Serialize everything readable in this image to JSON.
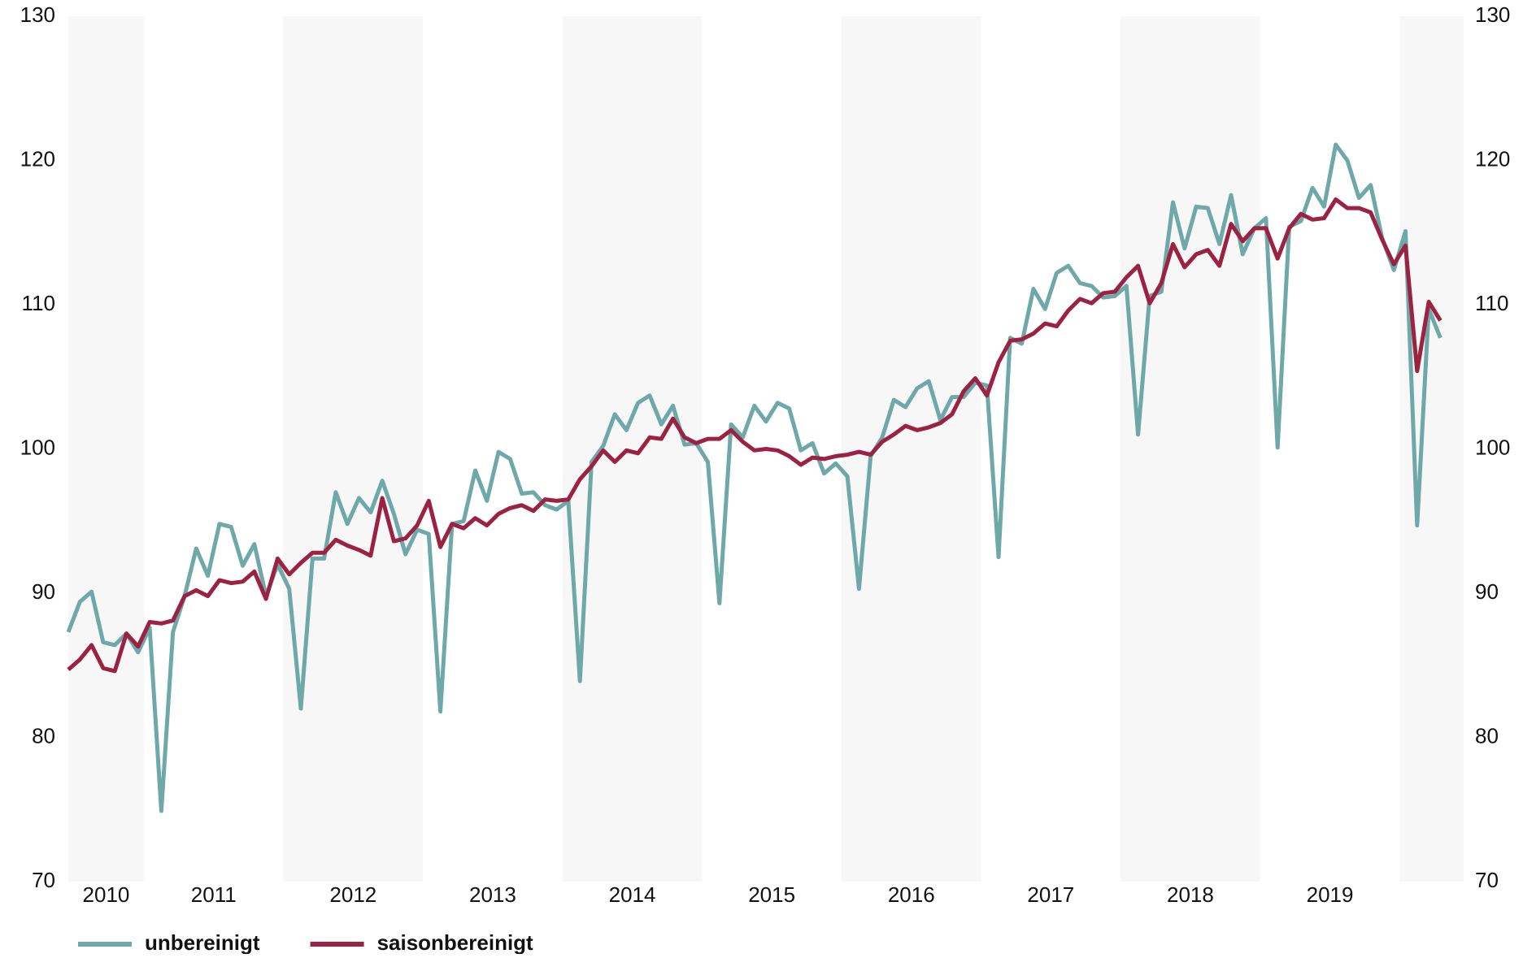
{
  "chart_data": {
    "type": "line",
    "categories": [
      "2010",
      null,
      null,
      null,
      null,
      null,
      null,
      "2011",
      null,
      null,
      null,
      null,
      null,
      null,
      null,
      null,
      null,
      null,
      null,
      "2012",
      null,
      null,
      null,
      null,
      null,
      null,
      null,
      null,
      null,
      null,
      null,
      "2013",
      null,
      null,
      null,
      null,
      null,
      null,
      null,
      null,
      null,
      null,
      null,
      "2014",
      null,
      null,
      null,
      null,
      null,
      null,
      null,
      null,
      null,
      null,
      null,
      "2015",
      null,
      null,
      null,
      null,
      null,
      null,
      null,
      null,
      null,
      null,
      null,
      "2016",
      null,
      null,
      null,
      null,
      null,
      null,
      null,
      null,
      null,
      null,
      null,
      "2017",
      null,
      null,
      null,
      null,
      null,
      null,
      null,
      null,
      null,
      null,
      null,
      "2018",
      null,
      null,
      null,
      null,
      null,
      null,
      null,
      null,
      null,
      null,
      null,
      "2019",
      null,
      null,
      null,
      null,
      null,
      null,
      null,
      null,
      null,
      null,
      null,
      null,
      null,
      null,
      null
    ],
    "series": [
      {
        "name": "unbereinigt",
        "color": "#6fa8a8",
        "values": [
          87.3,
          89.4,
          90.1,
          86.6,
          86.4,
          87.2,
          85.9,
          87.6,
          74.9,
          87.3,
          89.8,
          93.1,
          91.2,
          94.8,
          94.6,
          91.9,
          93.4,
          89.8,
          92.0,
          90.3,
          82.0,
          92.4,
          92.4,
          97.0,
          94.8,
          96.6,
          95.6,
          97.8,
          95.5,
          92.7,
          94.4,
          94.1,
          81.8,
          94.8,
          95.0,
          98.5,
          96.4,
          99.8,
          99.3,
          96.9,
          97.0,
          96.1,
          95.8,
          96.4,
          83.9,
          99.1,
          100.2,
          102.4,
          101.3,
          103.2,
          103.7,
          101.7,
          103.0,
          100.3,
          100.4,
          99.1,
          89.3,
          101.7,
          100.8,
          103.0,
          101.9,
          103.2,
          102.8,
          99.9,
          100.4,
          98.3,
          99.0,
          98.1,
          90.3,
          99.5,
          100.8,
          103.4,
          102.9,
          104.2,
          104.7,
          102.0,
          103.6,
          103.6,
          104.6,
          104.4,
          92.5,
          107.7,
          107.3,
          111.1,
          109.7,
          112.2,
          112.7,
          111.5,
          111.3,
          110.5,
          110.6,
          111.3,
          101.0,
          110.6,
          110.9,
          117.1,
          113.9,
          116.8,
          116.7,
          114.2,
          117.6,
          113.5,
          115.3,
          116.0,
          100.1,
          115.4,
          115.8,
          118.1,
          116.8,
          121.1,
          120.0,
          117.4,
          118.3,
          114.6,
          112.4,
          115.1,
          94.7,
          109.7,
          107.7
        ]
      },
      {
        "name": "saisonbereinigt",
        "color": "#9b2242",
        "values": [
          84.7,
          85.4,
          86.4,
          84.8,
          84.6,
          87.2,
          86.3,
          88.0,
          87.9,
          88.1,
          89.8,
          90.2,
          89.8,
          90.9,
          90.7,
          90.8,
          91.5,
          89.6,
          92.4,
          91.3,
          92.1,
          92.8,
          92.8,
          93.7,
          93.3,
          93.0,
          92.6,
          96.6,
          93.6,
          93.8,
          94.7,
          96.4,
          93.2,
          94.8,
          94.5,
          95.2,
          94.7,
          95.5,
          95.9,
          96.1,
          95.7,
          96.5,
          96.4,
          96.5,
          97.9,
          98.8,
          99.9,
          99.1,
          99.9,
          99.7,
          100.8,
          100.7,
          102.1,
          100.8,
          100.4,
          100.7,
          100.7,
          101.3,
          100.5,
          99.9,
          100.0,
          99.9,
          99.5,
          98.9,
          99.4,
          99.3,
          99.5,
          99.6,
          99.8,
          99.6,
          100.5,
          101.0,
          101.6,
          101.3,
          101.5,
          101.8,
          102.4,
          104.0,
          104.9,
          103.7,
          106.0,
          107.5,
          107.6,
          108.0,
          108.7,
          108.5,
          109.6,
          110.4,
          110.1,
          110.8,
          110.9,
          111.9,
          112.7,
          110.1,
          111.5,
          114.2,
          112.6,
          113.5,
          113.8,
          112.7,
          115.6,
          114.4,
          115.3,
          115.3,
          113.2,
          115.3,
          116.3,
          115.9,
          116.0,
          117.3,
          116.7,
          116.7,
          116.4,
          114.5,
          112.8,
          114.1,
          105.4,
          110.2,
          108.9
        ]
      }
    ],
    "ylim": [
      70,
      130
    ],
    "yticks": [
      70,
      80,
      90,
      100,
      110,
      120,
      130
    ],
    "y2lim": [
      70,
      130
    ],
    "y2ticks": [
      70,
      80,
      90,
      100,
      110,
      120,
      130
    ],
    "grid": false,
    "legend": "bottom-left"
  }
}
